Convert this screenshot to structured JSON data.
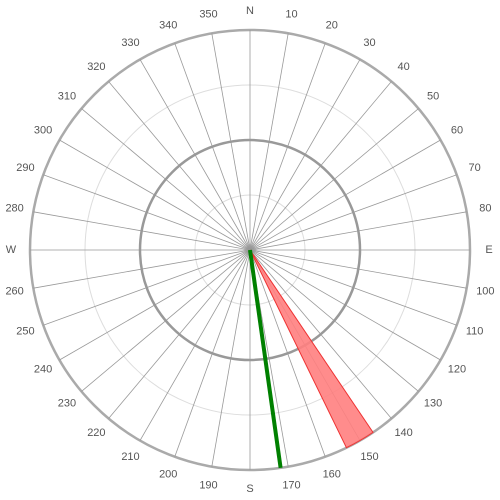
{
  "chart_data": {
    "type": "compass",
    "angle_ticks": [
      {
        "value": 0,
        "label": "N"
      },
      10,
      20,
      30,
      40,
      50,
      60,
      70,
      80,
      {
        "value": 90,
        "label": "E"
      },
      100,
      110,
      120,
      130,
      140,
      150,
      160,
      170,
      {
        "value": 180,
        "label": "S"
      },
      190,
      200,
      210,
      220,
      230,
      240,
      250,
      260,
      {
        "value": 270,
        "label": "W"
      },
      280,
      290,
      300,
      310,
      320,
      330,
      340,
      350
    ],
    "sector": {
      "from": 146,
      "to": 154,
      "color": "#ff7f7f"
    },
    "needle": {
      "value": 172,
      "color": "#008000"
    }
  }
}
